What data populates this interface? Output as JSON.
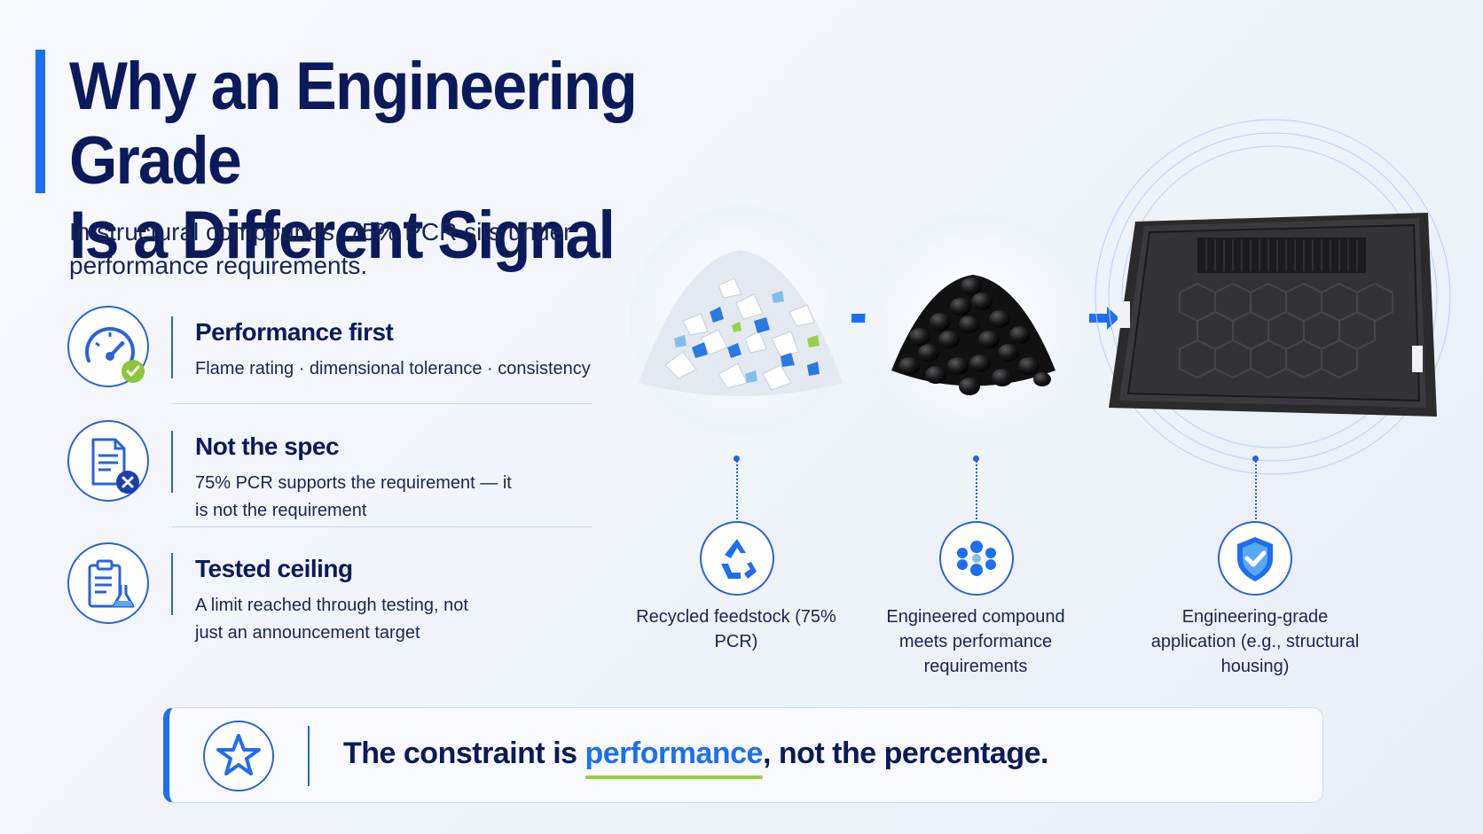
{
  "title": {
    "line1": "Why an Engineering Grade",
    "line2": "Is a Different Signal"
  },
  "subtitle": "In structural compounds, 75% PCR sits under performance requirements.",
  "features": [
    {
      "icon": "gauge-check-icon",
      "title": "Performance first",
      "desc": "Flame rating · dimensional tolerance · consistency"
    },
    {
      "icon": "document-x-icon",
      "title": "Not the spec",
      "desc": "75% PCR supports the requirement — it is not the requirement"
    },
    {
      "icon": "clipboard-flask-icon",
      "title": "Tested ceiling",
      "desc": "A limit reached through testing, not just an announcement target"
    }
  ],
  "process": [
    {
      "icon": "recycle-icon",
      "label": "Recycled feedstock (75% PCR)"
    },
    {
      "icon": "molecule-icon",
      "label": "Engineered compound meets performance requirements"
    },
    {
      "icon": "shield-check-icon",
      "label": "Engineering-grade application (e.g., structural housing)"
    }
  ],
  "banner": {
    "icon": "star-icon",
    "before": "The constraint is ",
    "highlight": "performance",
    "after": ", not the percentage."
  },
  "colors": {
    "accent": "#1d6ef0",
    "navy": "#0b1a5a",
    "green": "#9acb3c"
  }
}
